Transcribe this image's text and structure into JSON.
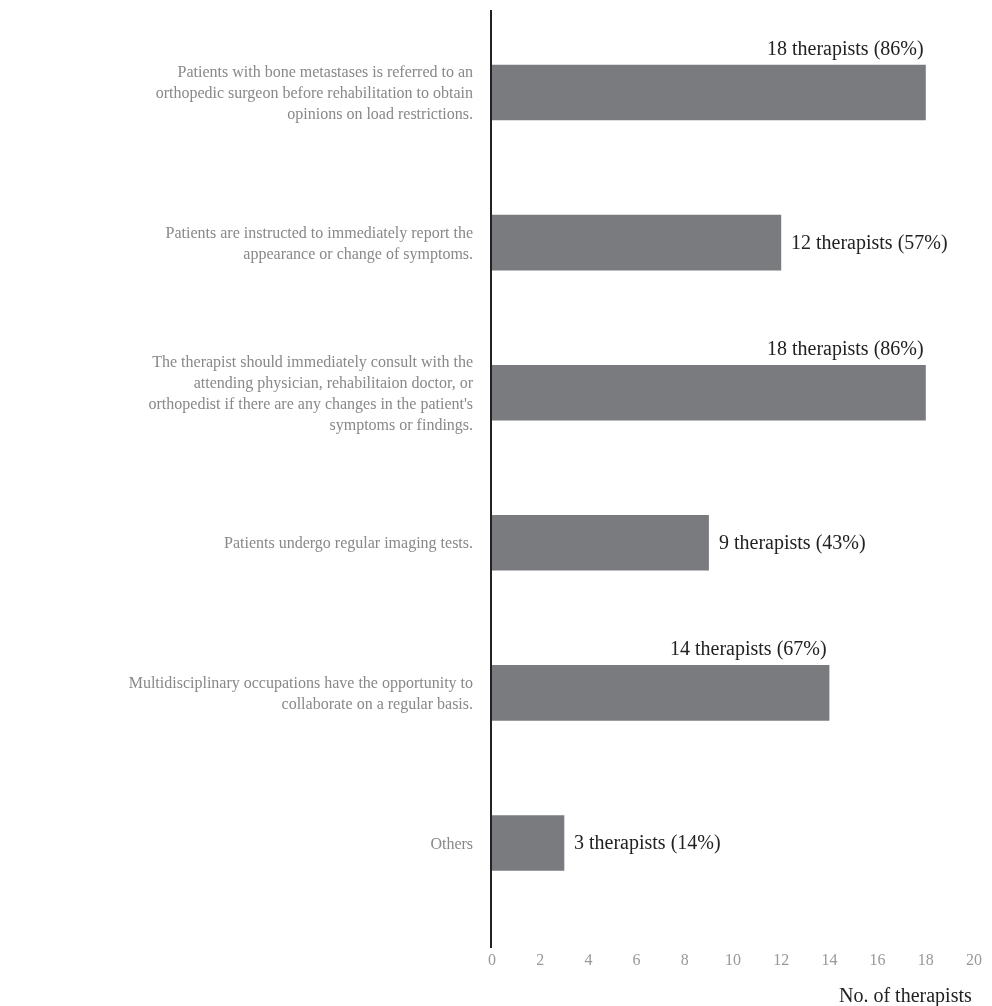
{
  "chart_data": {
    "type": "bar",
    "orientation": "horizontal",
    "categories": [
      "Patients with bone metastases is referred to an orthopedic surgeon before rehabilitation to obtain opinions on load restrictions.",
      "Patients are instructed to immediately report the appearance or change of symptoms.",
      "The therapist should immediately consult with the attending physician, rehabilitaion doctor, or orthopedist if there are any changes in the patient's symptoms or findings.",
      "Patients undergo regular imaging tests.",
      "Multidisciplinary occupations have the opportunity to collaborate on a regular basis.",
      "Others"
    ],
    "values": [
      18,
      12,
      18,
      9,
      14,
      3
    ],
    "value_labels": [
      "18 therapists (86%)",
      "12 therapists (57%)",
      "18 therapists (86%)",
      "9 therapists (43%)",
      "14 therapists (67%)",
      "3 therapists (14%)"
    ],
    "color": "#7a7b7f",
    "xlabel": "No. of therapists",
    "xlim": [
      0,
      20
    ],
    "xticks": [
      0,
      2,
      4,
      6,
      8,
      10,
      12,
      14,
      16,
      18,
      20
    ]
  }
}
